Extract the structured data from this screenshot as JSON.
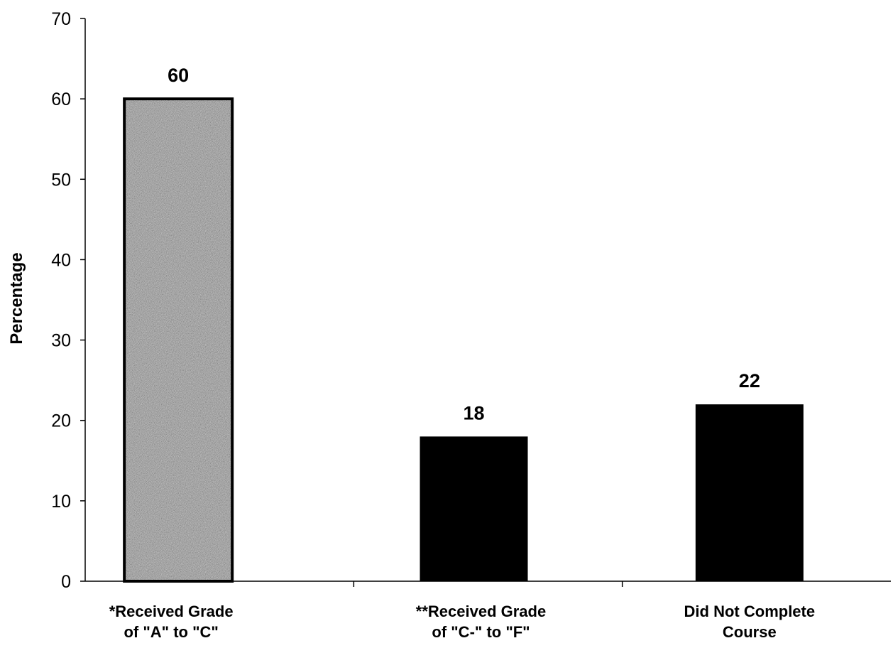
{
  "chart_data": {
    "type": "bar",
    "title": "",
    "xlabel": "",
    "ylabel": "Percentage",
    "ylim": [
      0,
      70
    ],
    "yticks": [
      0,
      10,
      20,
      30,
      40,
      50,
      60,
      70
    ],
    "grid": false,
    "legend": "none",
    "categories": [
      [
        "*Received Grade",
        "of \"A\" to \"C\""
      ],
      [
        "**Received Grade",
        "of \"C-\" to \"F\""
      ],
      [
        "Did Not Complete",
        "Course"
      ]
    ],
    "values": [
      60,
      18,
      22
    ],
    "data_labels": [
      "60",
      "18",
      "22"
    ],
    "bar_styles": [
      "stippled-gray",
      "solid-black",
      "solid-black"
    ],
    "colors": {
      "stippled_base": "#bdbdbd",
      "solid": "#000000",
      "axis": "#000000"
    }
  }
}
